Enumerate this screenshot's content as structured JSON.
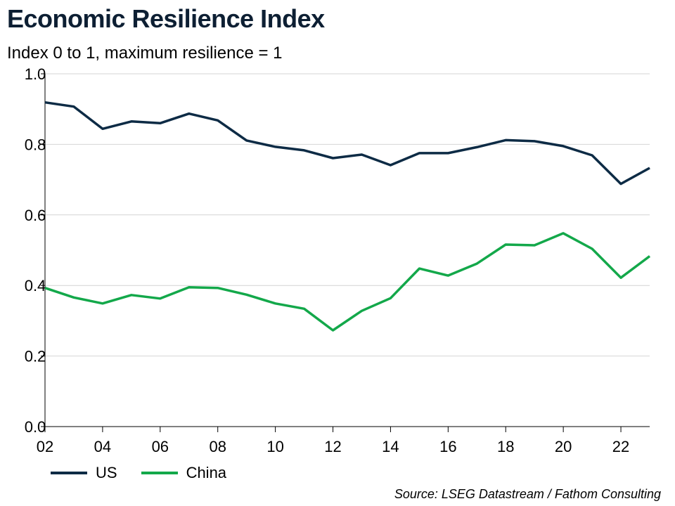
{
  "chart_data": {
    "type": "line",
    "title": "Economic Resilience Index",
    "subtitle": "Index 0 to 1, maximum resilience = 1",
    "source": "Source: LSEG Datastream / Fathom Consulting",
    "x": [
      2002,
      2003,
      2004,
      2005,
      2006,
      2007,
      2008,
      2009,
      2010,
      2011,
      2012,
      2013,
      2014,
      2015,
      2016,
      2017,
      2018,
      2019,
      2020,
      2021,
      2022,
      2023
    ],
    "x_tick_labels": [
      "02",
      "04",
      "06",
      "08",
      "10",
      "12",
      "14",
      "16",
      "18",
      "20",
      "22"
    ],
    "x_tick_values": [
      2002,
      2004,
      2006,
      2008,
      2010,
      2012,
      2014,
      2016,
      2018,
      2020,
      2022
    ],
    "xlim": [
      2002,
      2023
    ],
    "ylim": [
      0,
      1
    ],
    "y_ticks": [
      0.0,
      0.2,
      0.4,
      0.6,
      0.8,
      1.0
    ],
    "y_tick_labels": [
      "0.0",
      "0.2",
      "0.4",
      "0.6",
      "0.8",
      "1.0"
    ],
    "grid": "horizontal",
    "legend_position": "bottom-left",
    "series": [
      {
        "name": "US",
        "color": "#0d2b45",
        "values": [
          0.919,
          0.907,
          0.844,
          0.865,
          0.86,
          0.887,
          0.868,
          0.811,
          0.793,
          0.783,
          0.761,
          0.771,
          0.741,
          0.775,
          0.775,
          0.792,
          0.812,
          0.809,
          0.795,
          0.769,
          0.688,
          0.733
        ]
      },
      {
        "name": "China",
        "color": "#13a84a",
        "values": [
          0.393,
          0.366,
          0.349,
          0.373,
          0.363,
          0.395,
          0.393,
          0.374,
          0.349,
          0.334,
          0.273,
          0.328,
          0.364,
          0.448,
          0.428,
          0.462,
          0.516,
          0.514,
          0.548,
          0.504,
          0.422,
          0.483
        ]
      }
    ]
  }
}
